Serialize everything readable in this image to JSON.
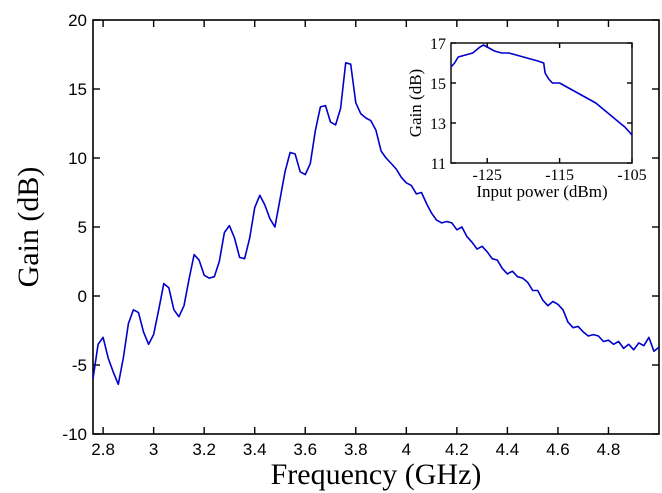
{
  "chart_data": [
    {
      "type": "line",
      "xlabel": "Frequency (GHz)",
      "ylabel": "Gain (dB)",
      "xlim": [
        2.76,
        5.0
      ],
      "ylim": [
        -10,
        20
      ],
      "xticks": [
        2.8,
        3,
        3.2,
        3.4,
        3.6,
        3.8,
        4,
        4.2,
        4.4,
        4.6,
        4.8
      ],
      "xtick_labels": [
        "2.8",
        "3",
        "3.2",
        "3.4",
        "3.6",
        "3.8",
        "4",
        "4.2",
        "4.4",
        "4.6",
        "4.8"
      ],
      "yticks": [
        -10,
        -5,
        0,
        5,
        10,
        15,
        20
      ],
      "ytick_labels": [
        "-10",
        "-5",
        "0",
        "5",
        "10",
        "15",
        "20"
      ],
      "grid": false,
      "line_color": "#0000cc",
      "series": [
        {
          "x": [
            2.76,
            2.78,
            2.8,
            2.82,
            2.84,
            2.86,
            2.88,
            2.9,
            2.92,
            2.94,
            2.96,
            2.98,
            3.0,
            3.02,
            3.04,
            3.06,
            3.08,
            3.1,
            3.12,
            3.14,
            3.16,
            3.18,
            3.2,
            3.22,
            3.24,
            3.26,
            3.28,
            3.3,
            3.32,
            3.34,
            3.36,
            3.38,
            3.4,
            3.42,
            3.44,
            3.46,
            3.48,
            3.5,
            3.52,
            3.54,
            3.56,
            3.58,
            3.6,
            3.62,
            3.64,
            3.66,
            3.68,
            3.7,
            3.72,
            3.74,
            3.76,
            3.78,
            3.8,
            3.82,
            3.84,
            3.86,
            3.88,
            3.9,
            3.92,
            3.94,
            3.96,
            3.98,
            4.0,
            4.02,
            4.04,
            4.06,
            4.08,
            4.1,
            4.12,
            4.14,
            4.16,
            4.18,
            4.2,
            4.22,
            4.24,
            4.26,
            4.28,
            4.3,
            4.32,
            4.34,
            4.36,
            4.38,
            4.4,
            4.42,
            4.44,
            4.46,
            4.48,
            4.5,
            4.52,
            4.54,
            4.56,
            4.58,
            4.6,
            4.62,
            4.64,
            4.66,
            4.68,
            4.7,
            4.72,
            4.74,
            4.76,
            4.78,
            4.8,
            4.82,
            4.84,
            4.86,
            4.88,
            4.9,
            4.92,
            4.94,
            4.96,
            4.98,
            5.0
          ],
          "y": [
            -6.0,
            -3.5,
            -3.0,
            -4.5,
            -5.5,
            -6.4,
            -4.5,
            -2.0,
            -1.0,
            -1.2,
            -2.6,
            -3.5,
            -2.8,
            -1.0,
            0.9,
            0.6,
            -1.0,
            -1.5,
            -0.7,
            1.2,
            3.0,
            2.6,
            1.5,
            1.3,
            1.4,
            2.5,
            4.6,
            5.1,
            4.2,
            2.8,
            2.7,
            4.2,
            6.4,
            7.3,
            6.6,
            5.6,
            5.0,
            7.0,
            9.0,
            10.4,
            10.3,
            9.0,
            8.8,
            9.6,
            12.0,
            13.7,
            13.8,
            12.6,
            12.4,
            13.6,
            16.9,
            16.8,
            14.0,
            13.2,
            12.9,
            12.7,
            12.0,
            10.5,
            10.0,
            9.6,
            9.2,
            8.6,
            8.2,
            8.0,
            7.4,
            7.5,
            6.7,
            6.0,
            5.5,
            5.3,
            5.4,
            5.3,
            4.8,
            5.0,
            4.3,
            3.9,
            3.4,
            3.6,
            3.2,
            2.7,
            2.6,
            2.0,
            1.6,
            1.8,
            1.4,
            1.3,
            1.0,
            0.4,
            0.4,
            -0.3,
            -0.7,
            -0.4,
            -0.6,
            -1.0,
            -1.9,
            -2.3,
            -2.2,
            -2.6,
            -2.9,
            -2.8,
            -2.9,
            -3.3,
            -3.2,
            -3.5,
            -3.3,
            -3.8,
            -3.5,
            -3.9,
            -3.4,
            -3.6,
            -3.0,
            -4.0,
            -3.7
          ]
        }
      ]
    },
    {
      "type": "line",
      "xlabel": "Input power (dBm)",
      "ylabel": "Gain (dB)",
      "xlim": [
        -130,
        -105
      ],
      "ylim": [
        11,
        17
      ],
      "xticks": [
        -125,
        -115,
        -105
      ],
      "xtick_labels": [
        "-125",
        "-115",
        "-105"
      ],
      "yticks": [
        11,
        13,
        15,
        17
      ],
      "ytick_labels": [
        "11",
        "13",
        "15",
        "17"
      ],
      "grid": false,
      "line_color": "#0000cc",
      "series": [
        {
          "x": [
            -130,
            -129.5,
            -129,
            -128,
            -127,
            -126,
            -125.5,
            -125,
            -124,
            -123,
            -122,
            -121,
            -120,
            -119,
            -118,
            -117.2,
            -117,
            -116.5,
            -116,
            -115,
            -114,
            -113,
            -112,
            -111,
            -110,
            -109,
            -108,
            -107,
            -106,
            -105
          ],
          "y": [
            15.8,
            16.0,
            16.3,
            16.4,
            16.5,
            16.8,
            16.9,
            16.8,
            16.6,
            16.5,
            16.5,
            16.4,
            16.3,
            16.2,
            16.1,
            16.0,
            15.5,
            15.2,
            15.0,
            15.0,
            14.8,
            14.6,
            14.4,
            14.2,
            14.0,
            13.7,
            13.4,
            13.1,
            12.8,
            12.4
          ]
        }
      ]
    }
  ]
}
